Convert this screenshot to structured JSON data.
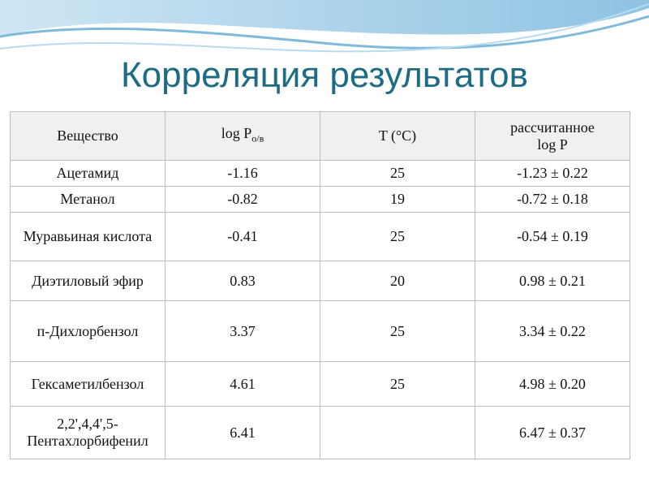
{
  "title": "Корреляция результатов",
  "table": {
    "header": [
      "Вещество",
      {
        "text": "log P",
        "sub": "о/в"
      },
      "T (°C)",
      "рассчитанное log P"
    ],
    "rows": [
      {
        "substance": "Ацетамид",
        "logP": "-1.16",
        "T": "25",
        "calc": "-1.23 ± 0.22"
      },
      {
        "substance": "Метанол",
        "logP": "-0.82",
        "T": "19",
        "calc": "-0.72 ± 0.18"
      },
      {
        "substance": "Муравьиная кислота",
        "logP": "-0.41",
        "T": "25",
        "calc": "-0.54 ± 0.19"
      },
      {
        "substance": "Диэтиловый эфир",
        "logP": "0.83",
        "T": "20",
        "calc": "0.98 ± 0.21"
      },
      {
        "substance": "п-Дихлорбензол",
        "logP": "3.37",
        "T": "25",
        "calc": "3.34 ± 0.22"
      },
      {
        "substance": "Гексаметилбензол",
        "logP": "4.61",
        "T": "25",
        "calc": "4.98 ± 0.20"
      },
      {
        "substance": "2,2',4,4',5-Пентахлорбифенил",
        "logP": "6.41",
        "calc": "6.47 ± 0.37"
      }
    ]
  }
}
